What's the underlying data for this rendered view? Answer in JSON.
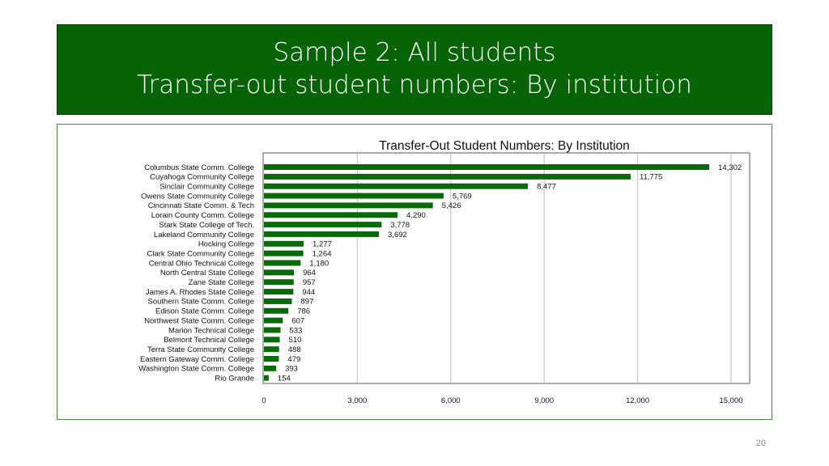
{
  "slide": {
    "title_line1": "Sample 2: All students",
    "title_line2": "Transfer-out student numbers: By institution",
    "page_number": "20"
  },
  "colors": {
    "title_band": "#066306",
    "bar": "#0a6a0a",
    "frame": "#4b8a3a",
    "grid": "#d0d0d0"
  },
  "chart_data": {
    "type": "bar",
    "orientation": "horizontal",
    "title": "Transfer-Out Student Numbers: By Institution",
    "xlabel": "",
    "ylabel": "",
    "xlim": [
      0,
      15000
    ],
    "xticks": [
      0,
      3000,
      6000,
      9000,
      12000,
      15000
    ],
    "xtick_labels": [
      "0",
      "3,000",
      "6,000",
      "9,000",
      "12,000",
      "15,000"
    ],
    "grid": "vertical",
    "categories": [
      "Columbus State Comm. College",
      "Cuyahoga Community College",
      "Sinclair Community College",
      "Owens State Community College",
      "Cincinnati State Comm. & Tech",
      "Lorain County Comm. College",
      "Stark State College of Tech.",
      "Lakeland Community College",
      "Hocking College",
      "Clark State Community College",
      "Central Ohio Technical College",
      "North Central State College",
      "Zane State College",
      "James A. Rhodes State College",
      "Southern State Comm. College",
      "Edison State Comm. College",
      "Northwest State Comm. College",
      "Marion Technical College",
      "Belmont Technical College",
      "Terra State Community College",
      "Eastern Gateway Comm. College",
      "Washington State Comm. College",
      "Rio Grande"
    ],
    "values": [
      14302,
      11775,
      8477,
      5769,
      5426,
      4290,
      3778,
      3692,
      1277,
      1264,
      1180,
      964,
      957,
      944,
      897,
      786,
      607,
      533,
      510,
      488,
      479,
      393,
      154
    ],
    "value_labels": [
      "14,302",
      "11,775",
      "8,477",
      "5,769",
      "5,426",
      "4,290",
      "3,778",
      "3,692",
      "1,277",
      "1,264",
      "1,180",
      "964",
      "957",
      "944",
      "897",
      "786",
      "607",
      "533",
      "510",
      "488",
      "479",
      "393",
      "154"
    ]
  }
}
